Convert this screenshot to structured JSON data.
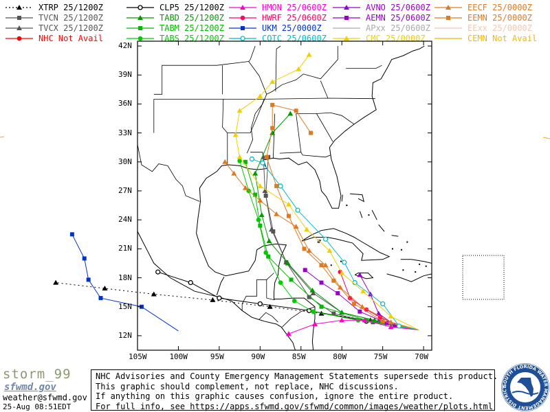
{
  "legend": [
    {
      "label": "XTRP 25/1200Z",
      "color": "#000000",
      "marker": "triangle",
      "dash": "2,3"
    },
    {
      "label": "CLP5 25/1200Z",
      "color": "#000000",
      "marker": "circle-open",
      "dash": ""
    },
    {
      "label": "HMON 25/0600Z",
      "color": "#ff00cc",
      "marker": "triangle",
      "dash": ""
    },
    {
      "label": "AVNO 25/0600Z",
      "color": "#9900cc",
      "marker": "triangle",
      "dash": ""
    },
    {
      "label": "EECF 25/0000Z",
      "color": "#e07a20",
      "marker": "triangle",
      "dash": ""
    },
    {
      "label": "TVCN 25/1200Z",
      "color": "#555555",
      "marker": "square",
      "dash": ""
    },
    {
      "label": "TABD 25/1200Z",
      "color": "#009900",
      "marker": "triangle",
      "dash": ""
    },
    {
      "label": "HWRF 25/0600Z",
      "color": "#ff0066",
      "marker": "circle",
      "dash": ""
    },
    {
      "label": "AEMN 25/0600Z",
      "color": "#9900cc",
      "marker": "square",
      "dash": ""
    },
    {
      "label": "EEMN 25/0000Z",
      "color": "#e07a20",
      "marker": "square",
      "dash": ""
    },
    {
      "label": "TVCX 25/1200Z",
      "color": "#555555",
      "marker": "triangle",
      "dash": ""
    },
    {
      "label": "TABM 25/1200Z",
      "color": "#00bb00",
      "marker": "square",
      "dash": ""
    },
    {
      "label": "UKM 25/0000Z",
      "color": "#0033cc",
      "marker": "square",
      "dash": ""
    },
    {
      "label": "APxx 25/0600Z",
      "color": "#aaaaaa",
      "marker": "none",
      "dash": ""
    },
    {
      "label": "EExx 25/0000Z",
      "color": "#f0c8b0",
      "marker": "none",
      "dash": ""
    },
    {
      "label": "NHC Not Avail",
      "color": "#ff0000",
      "marker": "circle",
      "dash": ""
    },
    {
      "label": "TABS 25/1200Z",
      "color": "#00cc00",
      "marker": "circle",
      "dash": ""
    },
    {
      "label": "COTC 25/0600Z",
      "color": "#00bbcc",
      "marker": "circle-open",
      "dash": ""
    },
    {
      "label": "CMC 25/0000Z",
      "color": "#f0d000",
      "marker": "triangle",
      "dash": ""
    },
    {
      "label": "CEMN Not Avail",
      "color": "#f5b800",
      "marker": "none",
      "dash": ""
    }
  ],
  "map": {
    "lat_labels": [
      "42N",
      "39N",
      "36N",
      "33N",
      "30N",
      "27N",
      "24N",
      "21N",
      "18N",
      "15N",
      "12N"
    ],
    "lon_labels": [
      "105W",
      "100W",
      "95W",
      "90W",
      "85W",
      "80W",
      "75W",
      "70W"
    ],
    "lat_values": [
      42,
      39,
      36,
      33,
      30,
      27,
      24,
      21,
      18,
      15,
      12
    ],
    "lon_values": [
      -105,
      -100,
      -95,
      -90,
      -85,
      -80,
      -75,
      -70
    ],
    "bounds": {
      "lon_min": -105,
      "lon_max": -69,
      "lat_min": 10.5,
      "lat_max": 42.5
    },
    "tracks": [
      {
        "model": "XTRP",
        "color": "#000000",
        "dash": "2,4",
        "marker": "triangle",
        "points": [
          [
            -70.6,
            12.6
          ],
          [
            -76.5,
            13.6
          ],
          [
            -82.5,
            14.3
          ],
          [
            -88.8,
            15.0
          ],
          [
            -95.8,
            15.7
          ],
          [
            -103.0,
            16.3
          ],
          [
            -109.0,
            16.9
          ],
          [
            -115.0,
            17.5
          ]
        ]
      },
      {
        "model": "CLP5",
        "color": "#000000",
        "dash": "",
        "marker": "circle-open",
        "points": [
          [
            -70.6,
            12.6
          ],
          [
            -77.0,
            13.5
          ],
          [
            -84.0,
            14.6
          ],
          [
            -90.0,
            15.3
          ],
          [
            -95.0,
            15.9
          ],
          [
            -98.5,
            17.5
          ],
          [
            -102.5,
            18.6
          ]
        ]
      },
      {
        "model": "UKM",
        "color": "#0033cc",
        "dash": "",
        "marker": "square",
        "points": [
          [
            -100.0,
            12.5
          ],
          [
            -104.5,
            15.0
          ],
          [
            -109.5,
            15.9
          ],
          [
            -111.0,
            17.8
          ],
          [
            -111.5,
            20.0
          ],
          [
            -113.0,
            22.5
          ]
        ]
      },
      {
        "model": "TVCN",
        "color": "#555555",
        "dash": "",
        "marker": "square",
        "points": [
          [
            -70.6,
            12.6
          ],
          [
            -76.2,
            13.4
          ],
          [
            -81.0,
            14.3
          ],
          [
            -84.0,
            16.0
          ],
          [
            -86.8,
            19.6
          ],
          [
            -88.4,
            22.8
          ],
          [
            -89.3,
            26.5
          ],
          [
            -89.0,
            30.5
          ]
        ]
      },
      {
        "model": "TVCX",
        "color": "#555555",
        "dash": "",
        "marker": "triangle",
        "points": [
          [
            -70.6,
            12.6
          ],
          [
            -75.5,
            13.5
          ],
          [
            -80.0,
            14.4
          ],
          [
            -83.5,
            16.4
          ],
          [
            -86.8,
            19.6
          ],
          [
            -88.6,
            23.0
          ],
          [
            -89.4,
            27.0
          ],
          [
            -89.6,
            30.5
          ]
        ]
      },
      {
        "model": "TABD",
        "color": "#009900",
        "dash": "",
        "marker": "triangle",
        "points": [
          [
            -70.6,
            12.6
          ],
          [
            -76.0,
            13.6
          ],
          [
            -80.0,
            14.4
          ],
          [
            -83.6,
            16.7
          ],
          [
            -86.6,
            19.5
          ],
          [
            -88.9,
            21.8
          ],
          [
            -89.8,
            24.5
          ],
          [
            -90.6,
            28.8
          ],
          [
            -88.5,
            33.0
          ],
          [
            -86.3,
            35.0
          ]
        ]
      },
      {
        "model": "TABM",
        "color": "#00bb00",
        "dash": "",
        "marker": "square",
        "points": [
          [
            -70.6,
            12.6
          ],
          [
            -77.0,
            13.6
          ],
          [
            -82.5,
            15.0
          ],
          [
            -86.2,
            17.8
          ],
          [
            -89.0,
            20.2
          ],
          [
            -90.0,
            23.4
          ],
          [
            -90.6,
            26.6
          ],
          [
            -91.8,
            30.0
          ]
        ]
      },
      {
        "model": "TABS",
        "color": "#00cc00",
        "dash": "",
        "marker": "circle",
        "points": [
          [
            -70.6,
            12.6
          ],
          [
            -78.0,
            13.6
          ],
          [
            -83.5,
            14.5
          ],
          [
            -85.8,
            15.6
          ],
          [
            -87.5,
            17.5
          ],
          [
            -89.3,
            20.6
          ],
          [
            -90.2,
            24.0
          ],
          [
            -91.4,
            27.0
          ],
          [
            -92.5,
            30.1
          ]
        ]
      },
      {
        "model": "HMON",
        "color": "#ff00cc",
        "dash": "",
        "marker": "triangle",
        "points": [
          [
            -70.6,
            12.6
          ],
          [
            -74.0,
            12.9
          ],
          [
            -77.2,
            13.6
          ],
          [
            -80.0,
            13.6
          ],
          [
            -83.3,
            13.2
          ],
          [
            -86.5,
            12.2
          ]
        ]
      },
      {
        "model": "HWRF",
        "color": "#ff0066",
        "dash": "",
        "marker": "circle",
        "points": [
          [
            -70.6,
            12.6
          ],
          [
            -73.0,
            13.0
          ],
          [
            -75.3,
            13.9
          ],
          [
            -77.0,
            14.7
          ],
          [
            -79.0,
            15.9
          ],
          [
            -80.2,
            18.6
          ]
        ]
      },
      {
        "model": "AVNO",
        "color": "#9900cc",
        "dash": "",
        "marker": "triangle",
        "points": [
          [
            -70.6,
            12.6
          ],
          [
            -73.5,
            13.1
          ],
          [
            -75.5,
            14.3
          ],
          [
            -76.5,
            16.3
          ],
          [
            -77.8,
            18.3
          ]
        ]
      },
      {
        "model": "AEMN",
        "color": "#9900cc",
        "dash": "",
        "marker": "square",
        "points": [
          [
            -70.6,
            12.6
          ],
          [
            -74.5,
            13.3
          ],
          [
            -77.8,
            14.5
          ],
          [
            -80.5,
            16.4
          ],
          [
            -82.5,
            17.5
          ],
          [
            -84.5,
            18.8
          ]
        ]
      },
      {
        "model": "EECF",
        "color": "#e07a20",
        "dash": "",
        "marker": "triangle",
        "points": [
          [
            -70.6,
            12.6
          ],
          [
            -74.0,
            13.4
          ],
          [
            -77.5,
            15.0
          ],
          [
            -80.2,
            17.0
          ],
          [
            -82.0,
            19.3
          ],
          [
            -84.0,
            20.8
          ],
          [
            -85.6,
            23.3
          ],
          [
            -88.0,
            24.6
          ],
          [
            -90.0,
            26.0
          ],
          [
            -91.8,
            27.3
          ],
          [
            -93.2,
            28.8
          ],
          [
            -94.3,
            30.0
          ]
        ]
      },
      {
        "model": "EEMN",
        "color": "#e07a20",
        "dash": "",
        "marker": "square",
        "points": [
          [
            -70.6,
            12.6
          ],
          [
            -75.0,
            13.5
          ],
          [
            -78.5,
            15.3
          ],
          [
            -81.0,
            17.7
          ],
          [
            -82.5,
            19.3
          ],
          [
            -84.6,
            21.0
          ],
          [
            -86.5,
            24.4
          ],
          [
            -88.0,
            27.5
          ],
          [
            -89.2,
            30.5
          ],
          [
            -88.5,
            33.5
          ],
          [
            -88.5,
            35.9
          ],
          [
            -85.6,
            35.3
          ],
          [
            -83.8,
            33.0
          ]
        ]
      },
      {
        "model": "COTC",
        "color": "#00bbcc",
        "dash": "",
        "marker": "circle-open",
        "points": [
          [
            -70.6,
            12.6
          ],
          [
            -73.0,
            13.0
          ],
          [
            -75.0,
            15.3
          ],
          [
            -78.4,
            17.5
          ],
          [
            -79.7,
            19.6
          ],
          [
            -82.0,
            22.0
          ],
          [
            -85.4,
            25.0
          ],
          [
            -87.5,
            27.5
          ],
          [
            -89.7,
            29.9
          ],
          [
            -91.0,
            30.3
          ]
        ]
      },
      {
        "model": "CMC",
        "color": "#f0d000",
        "dash": "",
        "marker": "triangle",
        "points": [
          [
            -70.6,
            12.6
          ],
          [
            -74.0,
            14.0
          ],
          [
            -77.4,
            16.6
          ],
          [
            -80.0,
            18.5
          ],
          [
            -81.5,
            20.8
          ],
          [
            -84.3,
            23.0
          ],
          [
            -86.5,
            25.6
          ],
          [
            -90.0,
            27.5
          ],
          [
            -92.5,
            30.5
          ],
          [
            -93.0,
            32.8
          ],
          [
            -92.5,
            35.3
          ],
          [
            -90.0,
            36.8
          ],
          [
            -88.5,
            38.3
          ],
          [
            -85.3,
            39.6
          ],
          [
            -84.0,
            41.1
          ]
        ]
      }
    ]
  },
  "footer": {
    "storm_name": "storm_99",
    "site_logo": "sfwmd.gov",
    "contact_email": "weather@sfwmd.gov",
    "issue_time": "25-Aug 08:51EDT",
    "disclaimer_lines": [
      "NHC Advisories and County Emergency Management Statements supersede this product.",
      "This graphic should complement, not replace, NHC discussions.",
      "If anything on this graphic causes confusion, ignore the entire product.",
      "For full info, see  https://apps.sfwmd.gov/sfwmd/common/images/weather/plots.html"
    ],
    "seal_text": "SOUTH FLORIDA WATER MANAGEMENT DISTRICT"
  }
}
